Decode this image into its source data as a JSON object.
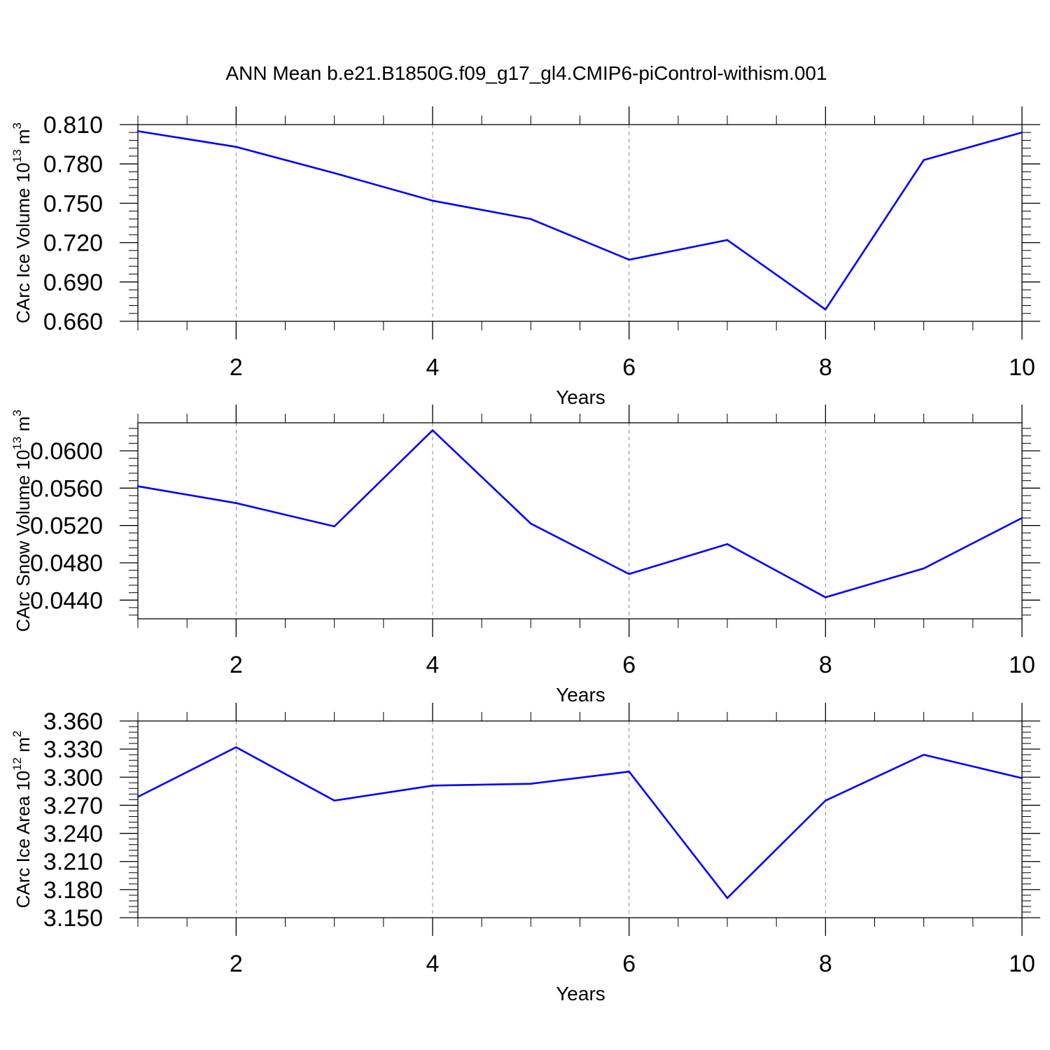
{
  "figure": {
    "title": "ANN Mean b.e21.B1850G.f09_g17_gl4.CMIP6-piControl-withism.001"
  },
  "style": {
    "line_color": "#0000ff",
    "axis_color": "#000000",
    "grid_color": "#888888",
    "background": "#ffffff"
  },
  "chart_data": [
    {
      "type": "line",
      "x": [
        1,
        2,
        3,
        4,
        5,
        6,
        7,
        8,
        9,
        10
      ],
      "series": [
        {
          "values": [
            0.805,
            0.793,
            0.773,
            0.752,
            0.738,
            0.707,
            0.722,
            0.669,
            0.783,
            0.804
          ]
        }
      ],
      "xlabel": "Years",
      "ylabel": {
        "text": "CArc Ice Volume 10",
        "superscript": "13",
        "unit": " m",
        "unit_superscript": "3"
      },
      "xlim": [
        1,
        10
      ],
      "ylim": [
        0.66,
        0.81
      ],
      "xticks": [
        2,
        4,
        6,
        8,
        10
      ],
      "xtick_labels": [
        "2",
        "4",
        "6",
        "8",
        "10"
      ],
      "yticks": [
        0.66,
        0.69,
        0.72,
        0.75,
        0.78,
        0.81
      ],
      "ytick_labels": [
        "0.660",
        "0.690",
        "0.720",
        "0.750",
        "0.780",
        "0.810"
      ],
      "grid": "vertical-dashed"
    },
    {
      "type": "line",
      "x": [
        1,
        2,
        3,
        4,
        5,
        6,
        7,
        8,
        9,
        10
      ],
      "series": [
        {
          "values": [
            0.0562,
            0.0544,
            0.0519,
            0.0622,
            0.0522,
            0.0468,
            0.05,
            0.0443,
            0.0474,
            0.0528
          ]
        }
      ],
      "xlabel": "Years",
      "ylabel": {
        "text": "CArc Snow Volume 10",
        "superscript": "13",
        "unit": " m",
        "unit_superscript": "3"
      },
      "xlim": [
        1,
        10
      ],
      "ylim": [
        0.042,
        0.063
      ],
      "xticks": [
        2,
        4,
        6,
        8,
        10
      ],
      "xtick_labels": [
        "2",
        "4",
        "6",
        "8",
        "10"
      ],
      "yticks": [
        0.044,
        0.048,
        0.052,
        0.056,
        0.06
      ],
      "ytick_labels": [
        "0.0440",
        "0.0480",
        "0.0520",
        "0.0560",
        "0.0600"
      ],
      "grid": "vertical-dashed"
    },
    {
      "type": "line",
      "x": [
        1,
        2,
        3,
        4,
        5,
        6,
        7,
        8,
        9,
        10
      ],
      "series": [
        {
          "values": [
            3.279,
            3.332,
            3.275,
            3.291,
            3.293,
            3.306,
            3.171,
            3.275,
            3.324,
            3.299
          ]
        }
      ],
      "xlabel": "Years",
      "ylabel": {
        "text": "CArc Ice Area 10",
        "superscript": "12",
        "unit": " m",
        "unit_superscript": "2"
      },
      "xlim": [
        1,
        10
      ],
      "ylim": [
        3.15,
        3.36
      ],
      "xticks": [
        2,
        4,
        6,
        8,
        10
      ],
      "xtick_labels": [
        "2",
        "4",
        "6",
        "8",
        "10"
      ],
      "yticks": [
        3.15,
        3.18,
        3.21,
        3.24,
        3.27,
        3.3,
        3.33,
        3.36
      ],
      "ytick_labels": [
        "3.150",
        "3.180",
        "3.210",
        "3.240",
        "3.270",
        "3.300",
        "3.330",
        "3.360"
      ],
      "grid": "vertical-dashed"
    }
  ]
}
